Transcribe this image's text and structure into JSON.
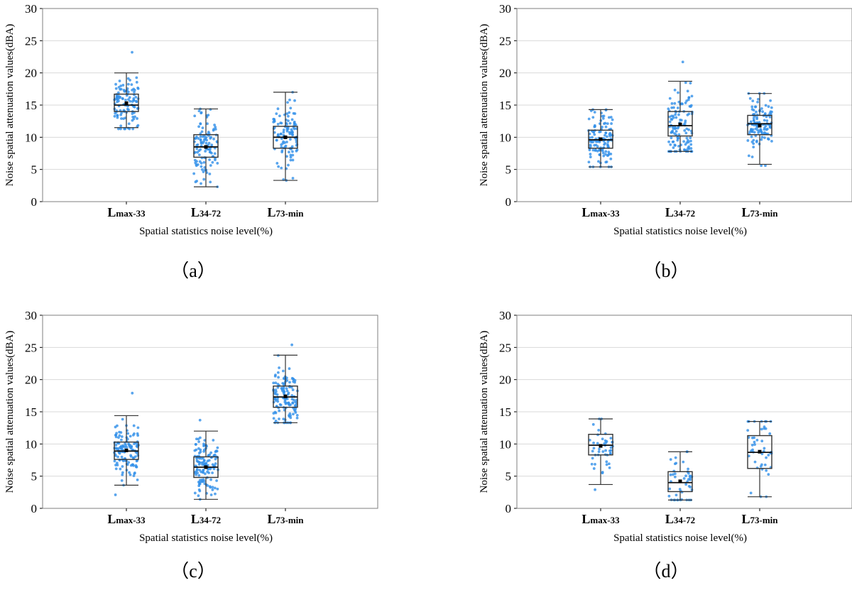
{
  "figure": {
    "panel_labels": [
      "（a）",
      "（b）",
      "（c）",
      "（d）"
    ]
  },
  "chart_data": [
    {
      "type": "box",
      "panel": "（a）",
      "xlabel": "Spatial statistics noise level(%)",
      "ylabel": "Noise spatial attenuation values(dBA)",
      "ylim": [
        0,
        30
      ],
      "yticks": [
        0,
        5,
        10,
        15,
        20,
        25,
        30
      ],
      "grid": true,
      "categories": [
        {
          "main": "L",
          "sub": "max-33"
        },
        {
          "main": "L",
          "sub": "34-72"
        },
        {
          "main": "L",
          "sub": "73-min"
        }
      ],
      "boxes": [
        {
          "min": 11.5,
          "q1": 14.0,
          "median": 15.0,
          "q3": 16.7,
          "max": 20.0,
          "mean": 15.3,
          "points_range": [
            11.3,
            23.2
          ],
          "n": 110
        },
        {
          "min": 2.3,
          "q1": 6.9,
          "median": 8.5,
          "q3": 10.4,
          "max": 14.4,
          "mean": 8.5,
          "points_range": [
            2.3,
            14.4
          ],
          "n": 110
        },
        {
          "min": 3.3,
          "q1": 8.3,
          "median": 10.0,
          "q3": 11.7,
          "max": 17.0,
          "mean": 10.0,
          "points_range": [
            3.3,
            17.0
          ],
          "n": 110
        }
      ]
    },
    {
      "type": "box",
      "panel": "（b）",
      "xlabel": "Spatial statistics noise level(%)",
      "ylabel": "Noise spatial attenuation values(dBA)",
      "ylim": [
        0,
        30
      ],
      "yticks": [
        0,
        5,
        10,
        15,
        20,
        25,
        30
      ],
      "grid": true,
      "categories": [
        {
          "main": "L",
          "sub": "max-33"
        },
        {
          "main": "L",
          "sub": "34-72"
        },
        {
          "main": "L",
          "sub": "73-min"
        }
      ],
      "boxes": [
        {
          "min": 5.4,
          "q1": 8.3,
          "median": 9.6,
          "q3": 11.1,
          "max": 14.3,
          "mean": 9.7,
          "points_range": [
            5.4,
            14.3
          ],
          "n": 120
        },
        {
          "min": 7.8,
          "q1": 10.2,
          "median": 11.8,
          "q3": 14.0,
          "max": 18.7,
          "mean": 12.0,
          "points_range": [
            7.8,
            21.7
          ],
          "n": 120
        },
        {
          "min": 5.8,
          "q1": 10.4,
          "median": 12.1,
          "q3": 13.4,
          "max": 16.8,
          "mean": 11.8,
          "points_range": [
            5.6,
            16.8
          ],
          "n": 120
        }
      ]
    },
    {
      "type": "box",
      "panel": "（c）",
      "xlabel": "Spatial statistics noise level(%)",
      "ylabel": "Noise spatial attenuation values(dBA)",
      "ylim": [
        0,
        30
      ],
      "yticks": [
        0,
        5,
        10,
        15,
        20,
        25,
        30
      ],
      "grid": true,
      "categories": [
        {
          "main": "L",
          "sub": "max-33"
        },
        {
          "main": "L",
          "sub": "34-72"
        },
        {
          "main": "L",
          "sub": "73-min"
        }
      ],
      "boxes": [
        {
          "min": 3.6,
          "q1": 7.6,
          "median": 8.9,
          "q3": 10.3,
          "max": 14.4,
          "mean": 9.0,
          "points_range": [
            2.1,
            17.9
          ],
          "n": 130
        },
        {
          "min": 1.4,
          "q1": 4.8,
          "median": 6.4,
          "q3": 8.0,
          "max": 12.0,
          "mean": 6.4,
          "points_range": [
            1.4,
            13.7
          ],
          "n": 130
        },
        {
          "min": 13.3,
          "q1": 15.7,
          "median": 17.3,
          "q3": 19.0,
          "max": 23.8,
          "mean": 17.4,
          "points_range": [
            13.3,
            25.4
          ],
          "n": 130
        }
      ]
    },
    {
      "type": "box",
      "panel": "（d）",
      "xlabel": "Spatial statistics noise level(%)",
      "ylabel": "Noise spatial attenuation values(dBA)",
      "ylim": [
        0,
        30
      ],
      "yticks": [
        0,
        5,
        10,
        15,
        20,
        25,
        30
      ],
      "grid": true,
      "categories": [
        {
          "main": "L",
          "sub": "max-33"
        },
        {
          "main": "L",
          "sub": "34-72"
        },
        {
          "main": "L",
          "sub": "73-min"
        }
      ],
      "boxes": [
        {
          "min": 3.7,
          "q1": 8.3,
          "median": 9.8,
          "q3": 11.5,
          "max": 13.9,
          "mean": 9.7,
          "points_range": [
            2.9,
            13.9
          ],
          "n": 45
        },
        {
          "min": 1.3,
          "q1": 2.6,
          "median": 4.0,
          "q3": 5.7,
          "max": 8.8,
          "mean": 4.2,
          "points_range": [
            1.3,
            8.8
          ],
          "n": 45
        },
        {
          "min": 1.8,
          "q1": 6.2,
          "median": 8.7,
          "q3": 11.3,
          "max": 13.5,
          "mean": 8.8,
          "points_range": [
            1.8,
            13.5
          ],
          "n": 45
        }
      ]
    }
  ]
}
